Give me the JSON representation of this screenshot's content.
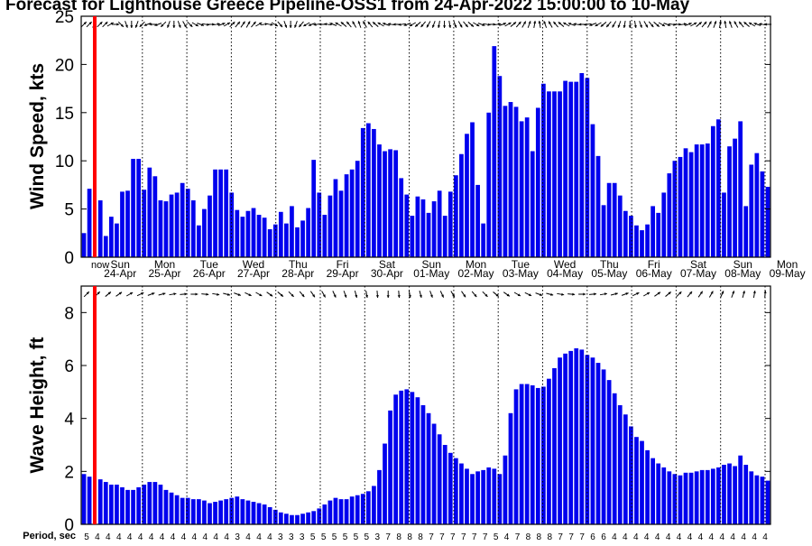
{
  "title": "Forecast for Lighthouse Greece Pipeline-OSS1 from 24-Apr-2022 15:00:00 to 10-May",
  "period_label": "Period, sec",
  "now_label": "now",
  "colors": {
    "bar": "#0000ee",
    "now_line": "#ff0000",
    "axis": "#000000",
    "grid": "#000000",
    "background": "#ffffff"
  },
  "days": [
    {
      "weekday": "Sun",
      "date": "24-Apr"
    },
    {
      "weekday": "Mon",
      "date": "25-Apr"
    },
    {
      "weekday": "Tue",
      "date": "26-Apr"
    },
    {
      "weekday": "Wed",
      "date": "27-Apr"
    },
    {
      "weekday": "Thu",
      "date": "28-Apr"
    },
    {
      "weekday": "Fri",
      "date": "29-Apr"
    },
    {
      "weekday": "Sat",
      "date": "30-Apr"
    },
    {
      "weekday": "Sun",
      "date": "01-May"
    },
    {
      "weekday": "Mon",
      "date": "02-May"
    },
    {
      "weekday": "Tue",
      "date": "03-May"
    },
    {
      "weekday": "Wed",
      "date": "04-May"
    },
    {
      "weekday": "Thu",
      "date": "05-May"
    },
    {
      "weekday": "Fri",
      "date": "06-May"
    },
    {
      "weekday": "Sat",
      "date": "07-May"
    },
    {
      "weekday": "Sun",
      "date": "08-May"
    },
    {
      "weekday": "Mon",
      "date": "09-May"
    }
  ],
  "period_values": [
    "5",
    "4",
    "4",
    "4",
    "4",
    "4",
    "4",
    "4",
    "4",
    "4",
    "4",
    "4",
    "4",
    "4",
    "3",
    "4",
    "4",
    "4",
    "3",
    "3",
    "3",
    "5",
    "5",
    "5",
    "5",
    "5",
    "5",
    "3",
    "7",
    "8",
    "8",
    "8",
    "7",
    "7",
    "7",
    "7",
    "7",
    "7",
    "5",
    "4",
    "7",
    "8",
    "8",
    "8",
    "7",
    "7",
    "7",
    "6",
    "6",
    "4",
    "4",
    "4",
    "4",
    "4",
    "4",
    "4",
    "4",
    "4",
    "4",
    "4",
    "4",
    "4",
    "4",
    "4"
  ],
  "chart_data": [
    {
      "type": "bar",
      "ylabel": "Wind Speed, kts",
      "ylim": [
        0,
        25
      ],
      "yticks": [
        0,
        5,
        10,
        15,
        20,
        25
      ],
      "grid": "vertical dotted lines at day boundaries",
      "values": [
        2.5,
        7.1,
        0,
        5.9,
        2.2,
        4.2,
        3.5,
        6.8,
        6.9,
        10.2,
        10.2,
        7.0,
        9.3,
        8.4,
        5.9,
        5.8,
        6.5,
        6.7,
        7.7,
        7.1,
        5.9,
        3.3,
        5.0,
        6.4,
        9.1,
        9.1,
        9.1,
        6.7,
        4.9,
        4.2,
        4.8,
        5.1,
        4.4,
        4.1,
        2.9,
        3.4,
        4.7,
        3.5,
        5.3,
        3.1,
        3.8,
        5.1,
        10.1,
        6.7,
        4.4,
        6.4,
        8.1,
        6.9,
        8.6,
        9.1,
        10.0,
        13.4,
        13.9,
        13.3,
        11.7,
        11.0,
        11.2,
        11.1,
        8.2,
        6.5,
        4.3,
        6.3,
        6.0,
        4.6,
        5.8,
        6.9,
        4.3,
        6.8,
        8.5,
        10.7,
        12.8,
        14.0,
        7.5,
        3.5,
        15.0,
        21.9,
        18.8,
        15.7,
        16.1,
        15.6,
        14.1,
        14.5,
        11.0,
        15.5,
        18.0,
        17.2,
        17.2,
        17.2,
        18.3,
        18.2,
        18.2,
        19.1,
        18.6,
        13.8,
        10.5,
        5.4,
        7.7,
        7.7,
        6.4,
        4.8,
        4.3,
        3.3,
        2.8,
        3.4,
        5.3,
        4.6,
        6.7,
        8.7,
        10.0,
        10.4,
        11.3,
        10.9,
        11.7,
        11.7,
        11.8,
        13.6,
        14.3,
        6.7,
        11.5,
        12.3,
        14.1,
        5.3,
        9.6,
        10.8,
        8.9,
        7.3
      ]
    },
    {
      "type": "bar",
      "ylabel": "Wave Height, ft",
      "ylim": [
        0,
        9
      ],
      "yticks": [
        0,
        2,
        4,
        6,
        8
      ],
      "grid": "vertical dotted lines at day boundaries",
      "values": [
        1.9,
        1.8,
        0,
        1.7,
        1.6,
        1.5,
        1.5,
        1.4,
        1.3,
        1.3,
        1.4,
        1.5,
        1.6,
        1.6,
        1.5,
        1.3,
        1.2,
        1.1,
        1.0,
        1.0,
        0.95,
        0.95,
        0.9,
        0.8,
        0.85,
        0.9,
        0.95,
        1.0,
        1.05,
        0.95,
        0.9,
        0.85,
        0.8,
        0.75,
        0.65,
        0.55,
        0.45,
        0.4,
        0.35,
        0.35,
        0.4,
        0.45,
        0.5,
        0.6,
        0.75,
        0.9,
        1.0,
        0.95,
        0.95,
        1.05,
        1.1,
        1.15,
        1.25,
        1.45,
        2.05,
        3.05,
        4.3,
        4.9,
        5.05,
        5.1,
        5.0,
        4.8,
        4.5,
        4.2,
        3.8,
        3.4,
        3.0,
        2.7,
        2.5,
        2.3,
        2.1,
        1.9,
        2.0,
        2.05,
        2.15,
        2.1,
        1.9,
        2.6,
        4.2,
        5.1,
        5.3,
        5.3,
        5.25,
        5.15,
        5.2,
        5.5,
        5.9,
        6.3,
        6.45,
        6.55,
        6.65,
        6.6,
        6.4,
        6.3,
        6.1,
        5.85,
        5.45,
        4.95,
        4.5,
        4.15,
        3.7,
        3.3,
        3.15,
        2.8,
        2.5,
        2.3,
        2.15,
        2.0,
        1.9,
        1.85,
        1.95,
        1.95,
        2.0,
        2.05,
        2.05,
        2.1,
        2.15,
        2.25,
        2.3,
        2.2,
        2.6,
        2.25,
        2.0,
        1.85,
        1.8,
        1.65
      ]
    }
  ],
  "direction_arrows": {
    "wind_deg": [
      45,
      45,
      30,
      45,
      45,
      60,
      90,
      135,
      160,
      180,
      200,
      225,
      250,
      270,
      250,
      225,
      200,
      180,
      160,
      150,
      135,
      120,
      110,
      100,
      90,
      80,
      70,
      60,
      45,
      40,
      35,
      30,
      40,
      60,
      80,
      100,
      120,
      140,
      160,
      180,
      200,
      220,
      240,
      250,
      260,
      270,
      280,
      290,
      300,
      310,
      320,
      330,
      340,
      330,
      320,
      310,
      300,
      290,
      280,
      270,
      260,
      250,
      240,
      230,
      220,
      210,
      200,
      190,
      180,
      170,
      160,
      150,
      140,
      130,
      120,
      110,
      100,
      90,
      80,
      70,
      60,
      50,
      40,
      30,
      20,
      10,
      350,
      340,
      330,
      320,
      310,
      300,
      290,
      280,
      270,
      260,
      250,
      240,
      230,
      220,
      210,
      200,
      190,
      180,
      170,
      160,
      150,
      140,
      130,
      120,
      110,
      100,
      90,
      80,
      70,
      60,
      50,
      40,
      30,
      20,
      10,
      350,
      340,
      330,
      320,
      310,
      300,
      290,
      280,
      270
    ],
    "wave_deg": [
      45,
      45,
      50,
      55,
      60,
      65,
      70,
      75,
      80,
      85,
      90,
      95,
      100,
      105,
      110,
      115,
      120,
      125,
      130,
      135,
      140,
      145,
      150,
      155,
      160,
      165,
      170,
      175,
      180,
      175,
      170,
      165,
      160,
      155,
      150,
      145,
      140,
      135,
      130,
      125,
      120,
      115,
      110,
      105,
      100,
      95,
      90,
      85,
      80,
      75,
      70,
      65,
      60,
      55,
      50,
      45,
      40,
      35,
      30,
      25,
      20,
      15,
      10,
      5
    ]
  }
}
